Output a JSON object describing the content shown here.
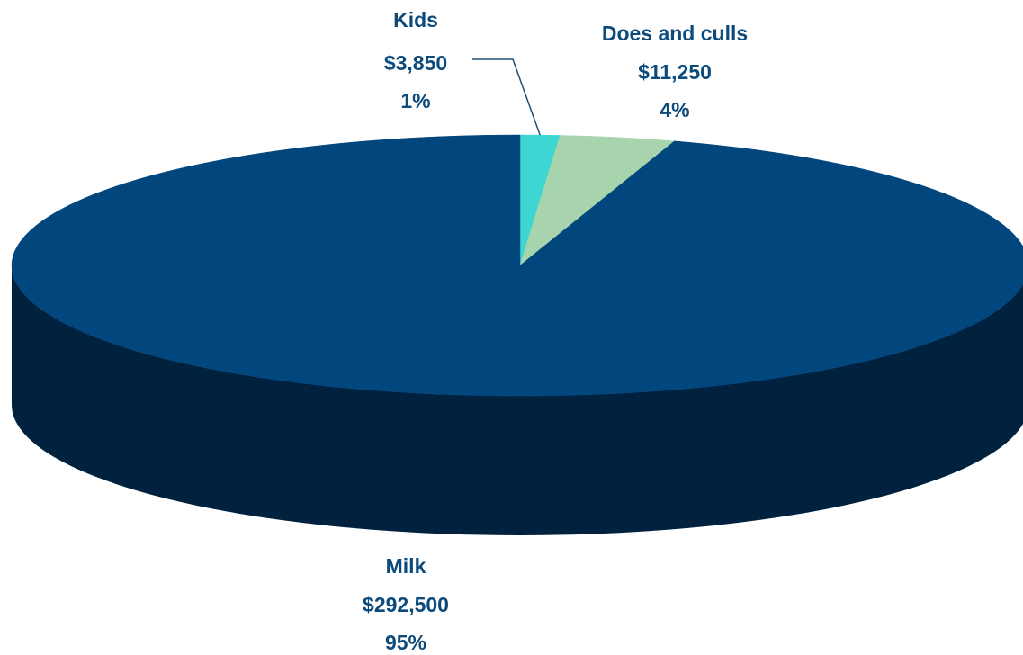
{
  "chart_data": {
    "type": "pie",
    "style": "3d",
    "title": "",
    "slices": [
      {
        "name": "Kids",
        "value": 3850,
        "value_label": "$3,850",
        "percent_label": "1%",
        "color": "#3dd6d3"
      },
      {
        "name": "Does and culls",
        "value": 11250,
        "value_label": "$11,250",
        "percent_label": "4%",
        "color": "#a7d4ad"
      },
      {
        "name": "Milk",
        "value": 292500,
        "value_label": "$292,500",
        "percent_label": "95%",
        "color": "#02467e"
      }
    ],
    "side_color": "#00223f",
    "label_color": "#0c4a7c"
  }
}
